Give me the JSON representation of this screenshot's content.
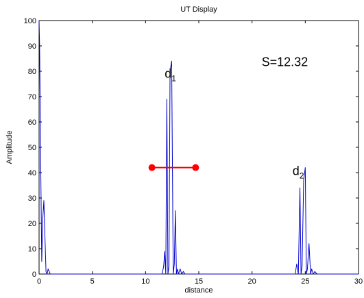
{
  "chart_data": {
    "type": "line",
    "title": "UT Display",
    "xlabel": "distance",
    "ylabel": "Amplitude",
    "xlim": [
      0,
      30
    ],
    "ylim": [
      0,
      100
    ],
    "x_ticks": [
      0,
      5,
      10,
      15,
      20,
      25,
      30
    ],
    "y_ticks": [
      0,
      10,
      20,
      30,
      40,
      50,
      60,
      70,
      80,
      90,
      100
    ],
    "grid": false,
    "line_color": "#0000cc",
    "series": [
      {
        "x": [
          0,
          0.05,
          0.15,
          0.25,
          0.35,
          0.45,
          0.55,
          0.65,
          0.75,
          0.85,
          0.95,
          1.05,
          1.2,
          1.4,
          11.4,
          11.55,
          11.7,
          11.8,
          11.9,
          12.0,
          12.1,
          12.2,
          12.3,
          12.45,
          12.6,
          12.7,
          12.8,
          12.9,
          13.0,
          13.1,
          13.25,
          13.4,
          13.55,
          13.7,
          23.9,
          24.05,
          24.2,
          24.35,
          24.5,
          24.6,
          24.7,
          24.85,
          25.0,
          25.1,
          25.2,
          25.35,
          25.5,
          25.6,
          25.75,
          25.9,
          26.1,
          30
        ],
        "y": [
          100,
          90,
          45,
          5,
          22,
          29,
          15,
          1,
          0,
          2,
          1,
          0,
          0,
          0,
          0,
          0,
          3,
          9,
          0,
          69,
          0,
          3,
          80,
          84,
          0,
          4,
          25,
          0,
          2,
          0,
          2,
          0,
          1,
          0,
          0,
          0,
          4,
          0,
          34,
          0,
          3,
          37,
          42,
          0,
          2,
          12,
          0,
          2,
          0,
          1,
          0,
          0
        ]
      }
    ],
    "annotations": {
      "d1": {
        "main": "d",
        "sub": "1",
        "x": 11.8,
        "y": 77.5
      },
      "d2": {
        "main": "d",
        "sub": "2",
        "x": 23.8,
        "y": 39
      },
      "s_label": {
        "text": "S=12.32",
        "x": 20.9,
        "y": 82
      }
    },
    "marker_segment": {
      "color": "#ff0000",
      "x_start": 10.6,
      "x_end": 14.7,
      "y": 42
    }
  }
}
